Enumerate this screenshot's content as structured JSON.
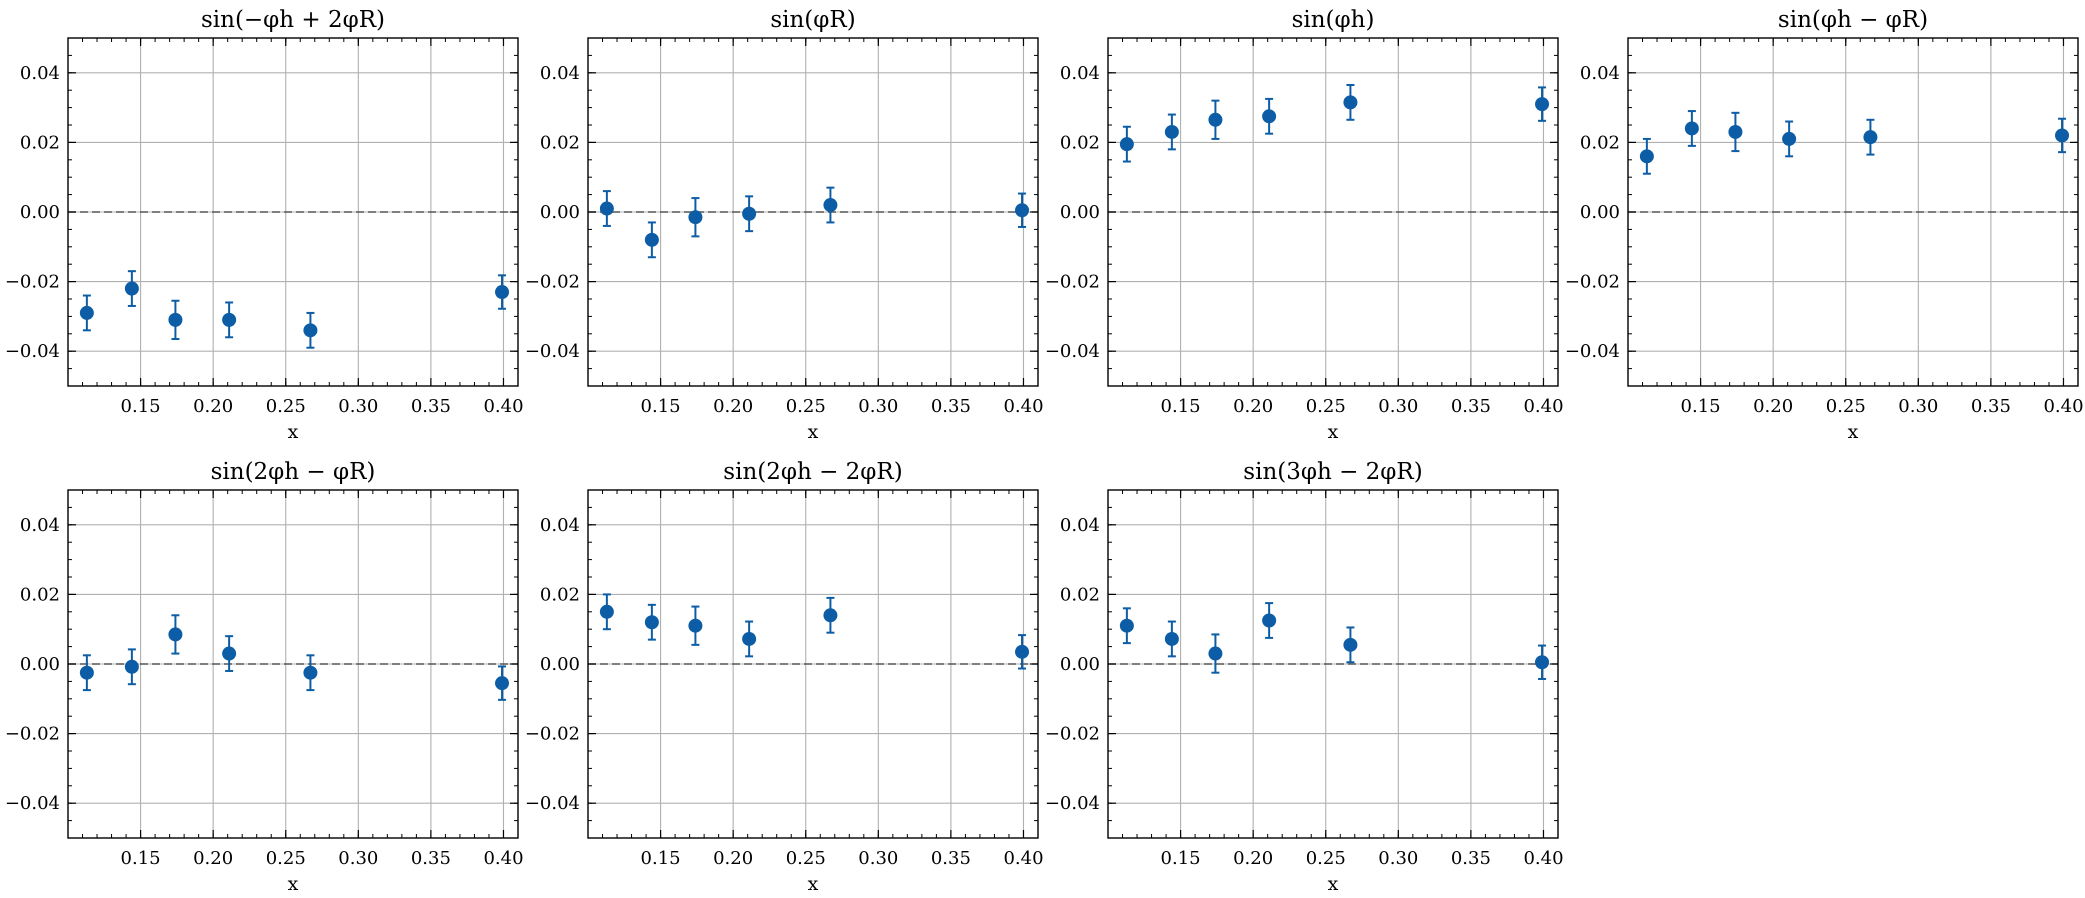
{
  "figure": {
    "marker_color": "#0C5DA5",
    "grid_color": "#b0b0b0",
    "zero_line_color": "#555555"
  },
  "chart_data": [
    {
      "type": "scatter",
      "title": "sin(−φh + 2φR)",
      "xlabel": "x",
      "ylabel": "",
      "xlim": [
        0.1,
        0.41
      ],
      "ylim": [
        -0.05,
        0.05
      ],
      "xticks": [
        0.15,
        0.2,
        0.25,
        0.3,
        0.35,
        0.4
      ],
      "xtick_labels": [
        "0.15",
        "0.20",
        "0.25",
        "0.30",
        "0.35",
        "0.40"
      ],
      "yticks": [
        -0.04,
        -0.02,
        0.0,
        0.02,
        0.04
      ],
      "ytick_labels": [
        "−0.04",
        "−0.02",
        "0.00",
        "0.02",
        "0.04"
      ],
      "grid": true,
      "reference_line": 0.0,
      "x": [
        0.113,
        0.144,
        0.174,
        0.211,
        0.267,
        0.399
      ],
      "y": [
        -0.029,
        -0.022,
        -0.031,
        -0.031,
        -0.034,
        -0.023
      ],
      "yerr": [
        0.005,
        0.005,
        0.0055,
        0.005,
        0.005,
        0.0048
      ]
    },
    {
      "type": "scatter",
      "title": "sin(φR)",
      "xlabel": "x",
      "ylabel": "",
      "xlim": [
        0.1,
        0.41
      ],
      "ylim": [
        -0.05,
        0.05
      ],
      "xticks": [
        0.15,
        0.2,
        0.25,
        0.3,
        0.35,
        0.4
      ],
      "xtick_labels": [
        "0.15",
        "0.20",
        "0.25",
        "0.30",
        "0.35",
        "0.40"
      ],
      "yticks": [
        -0.04,
        -0.02,
        0.0,
        0.02,
        0.04
      ],
      "ytick_labels": [
        "−0.04",
        "−0.02",
        "0.00",
        "0.02",
        "0.04"
      ],
      "grid": true,
      "reference_line": 0.0,
      "x": [
        0.113,
        0.144,
        0.174,
        0.211,
        0.267,
        0.399
      ],
      "y": [
        0.001,
        -0.008,
        -0.0015,
        -0.0005,
        0.002,
        0.0005
      ],
      "yerr": [
        0.005,
        0.005,
        0.0055,
        0.005,
        0.005,
        0.0048
      ]
    },
    {
      "type": "scatter",
      "title": "sin(φh)",
      "xlabel": "x",
      "ylabel": "",
      "xlim": [
        0.1,
        0.41
      ],
      "ylim": [
        -0.05,
        0.05
      ],
      "xticks": [
        0.15,
        0.2,
        0.25,
        0.3,
        0.35,
        0.4
      ],
      "xtick_labels": [
        "0.15",
        "0.20",
        "0.25",
        "0.30",
        "0.35",
        "0.40"
      ],
      "yticks": [
        -0.04,
        -0.02,
        0.0,
        0.02,
        0.04
      ],
      "ytick_labels": [
        "−0.04",
        "−0.02",
        "0.00",
        "0.02",
        "0.04"
      ],
      "grid": true,
      "reference_line": 0.0,
      "x": [
        0.113,
        0.144,
        0.174,
        0.211,
        0.267,
        0.399
      ],
      "y": [
        0.0195,
        0.023,
        0.0265,
        0.0275,
        0.0315,
        0.031
      ],
      "yerr": [
        0.005,
        0.005,
        0.0055,
        0.005,
        0.005,
        0.0048
      ]
    },
    {
      "type": "scatter",
      "title": "sin(φh − φR)",
      "xlabel": "x",
      "ylabel": "",
      "xlim": [
        0.1,
        0.41
      ],
      "ylim": [
        -0.05,
        0.05
      ],
      "xticks": [
        0.15,
        0.2,
        0.25,
        0.3,
        0.35,
        0.4
      ],
      "xtick_labels": [
        "0.15",
        "0.20",
        "0.25",
        "0.30",
        "0.35",
        "0.40"
      ],
      "yticks": [
        -0.04,
        -0.02,
        0.0,
        0.02,
        0.04
      ],
      "ytick_labels": [
        "−0.04",
        "−0.02",
        "0.00",
        "0.02",
        "0.04"
      ],
      "grid": true,
      "reference_line": 0.0,
      "x": [
        0.113,
        0.144,
        0.174,
        0.211,
        0.267,
        0.399
      ],
      "y": [
        0.016,
        0.024,
        0.023,
        0.021,
        0.0215,
        0.022
      ],
      "yerr": [
        0.005,
        0.005,
        0.0055,
        0.005,
        0.005,
        0.0048
      ]
    },
    {
      "type": "scatter",
      "title": "sin(2φh − φR)",
      "xlabel": "x",
      "ylabel": "",
      "xlim": [
        0.1,
        0.41
      ],
      "ylim": [
        -0.05,
        0.05
      ],
      "xticks": [
        0.15,
        0.2,
        0.25,
        0.3,
        0.35,
        0.4
      ],
      "xtick_labels": [
        "0.15",
        "0.20",
        "0.25",
        "0.30",
        "0.35",
        "0.40"
      ],
      "yticks": [
        -0.04,
        -0.02,
        0.0,
        0.02,
        0.04
      ],
      "ytick_labels": [
        "−0.04",
        "−0.02",
        "0.00",
        "0.02",
        "0.04"
      ],
      "grid": true,
      "reference_line": 0.0,
      "x": [
        0.113,
        0.144,
        0.174,
        0.211,
        0.267,
        0.399
      ],
      "y": [
        -0.0025,
        -0.0008,
        0.0085,
        0.003,
        -0.0025,
        -0.0055
      ],
      "yerr": [
        0.005,
        0.005,
        0.0055,
        0.005,
        0.005,
        0.0048
      ]
    },
    {
      "type": "scatter",
      "title": "sin(2φh − 2φR)",
      "xlabel": "x",
      "ylabel": "",
      "xlim": [
        0.1,
        0.41
      ],
      "ylim": [
        -0.05,
        0.05
      ],
      "xticks": [
        0.15,
        0.2,
        0.25,
        0.3,
        0.35,
        0.4
      ],
      "xtick_labels": [
        "0.15",
        "0.20",
        "0.25",
        "0.30",
        "0.35",
        "0.40"
      ],
      "yticks": [
        -0.04,
        -0.02,
        0.0,
        0.02,
        0.04
      ],
      "ytick_labels": [
        "−0.04",
        "−0.02",
        "0.00",
        "0.02",
        "0.04"
      ],
      "grid": true,
      "reference_line": 0.0,
      "x": [
        0.113,
        0.144,
        0.174,
        0.211,
        0.267,
        0.399
      ],
      "y": [
        0.015,
        0.012,
        0.011,
        0.0072,
        0.014,
        0.0035
      ],
      "yerr": [
        0.005,
        0.005,
        0.0055,
        0.005,
        0.005,
        0.0048
      ]
    },
    {
      "type": "scatter",
      "title": "sin(3φh − 2φR)",
      "xlabel": "x",
      "ylabel": "",
      "xlim": [
        0.1,
        0.41
      ],
      "ylim": [
        -0.05,
        0.05
      ],
      "xticks": [
        0.15,
        0.2,
        0.25,
        0.3,
        0.35,
        0.4
      ],
      "xtick_labels": [
        "0.15",
        "0.20",
        "0.25",
        "0.30",
        "0.35",
        "0.40"
      ],
      "yticks": [
        -0.04,
        -0.02,
        0.0,
        0.02,
        0.04
      ],
      "ytick_labels": [
        "−0.04",
        "−0.02",
        "0.00",
        "0.02",
        "0.04"
      ],
      "grid": true,
      "reference_line": 0.0,
      "x": [
        0.113,
        0.144,
        0.174,
        0.211,
        0.267,
        0.399
      ],
      "y": [
        0.011,
        0.0072,
        0.003,
        0.0125,
        0.0055,
        0.0005
      ],
      "yerr": [
        0.005,
        0.005,
        0.0055,
        0.005,
        0.005,
        0.0048
      ]
    }
  ]
}
